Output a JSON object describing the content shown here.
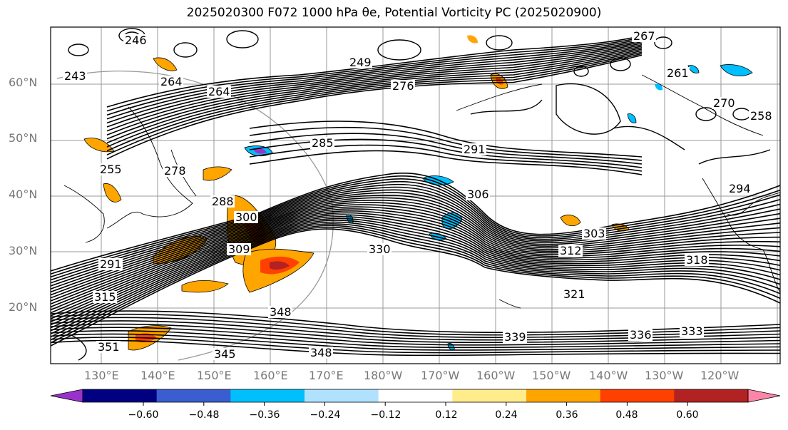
{
  "title": "2025020300 F072 1000 hPa θe, Potential Vorticity PC (2025020900)",
  "map": {
    "lat_labels": [
      "60°N",
      "50°N",
      "40°N",
      "30°N",
      "20°N"
    ],
    "lon_labels": [
      "130°E",
      "140°E",
      "150°E",
      "160°E",
      "170°E",
      "180°W",
      "170°W",
      "160°W",
      "150°W",
      "140°W",
      "130°W",
      "120°W"
    ],
    "contour_labels": [
      "246",
      "243",
      "264",
      "264",
      "249",
      "276",
      "255",
      "278",
      "285",
      "291",
      "306",
      "288",
      "300",
      "309",
      "291",
      "303",
      "312",
      "318",
      "330",
      "321",
      "315",
      "348",
      "339",
      "336",
      "333",
      "345",
      "348",
      "351",
      "294",
      "267",
      "261",
      "258",
      "270"
    ]
  },
  "colorbar": {
    "tick_labels": [
      "−0.60",
      "−0.48",
      "−0.36",
      "−0.24",
      "−0.12",
      "0.12",
      "0.24",
      "0.36",
      "0.48",
      "0.60"
    ],
    "bin_colors": [
      "#9932cc",
      "#000080",
      "#3a5ecf",
      "#00bfff",
      "#b0e2ff",
      "#ffffff",
      "#ffec8b",
      "#ffa500",
      "#ff4000",
      "#b22222",
      "#ff85a8"
    ]
  }
}
